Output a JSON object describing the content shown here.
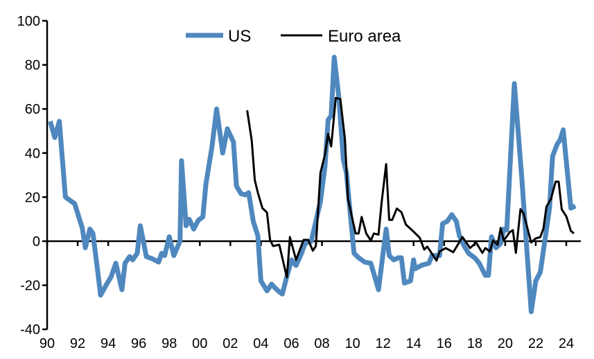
{
  "chart_data": {
    "type": "line",
    "title": "",
    "xlabel": "",
    "ylabel": "",
    "xlim": [
      1990,
      2024.7
    ],
    "ylim": [
      -40,
      100
    ],
    "y_ticks": [
      -40,
      -20,
      0,
      20,
      40,
      60,
      80,
      100
    ],
    "x_ticks": [
      1990,
      1992,
      1994,
      1996,
      1998,
      2000,
      2002,
      2004,
      2006,
      2008,
      2010,
      2012,
      2014,
      2016,
      2018,
      2020,
      2022,
      2024
    ],
    "x_tick_labels": [
      "90",
      "92",
      "94",
      "96",
      "98",
      "00",
      "02",
      "04",
      "06",
      "08",
      "10",
      "12",
      "14",
      "16",
      "18",
      "20",
      "22",
      "24"
    ],
    "y_tick_labels": [
      "-40",
      "-20",
      "0",
      "20",
      "40",
      "60",
      "80",
      "100"
    ],
    "grid": false,
    "legend_position": "top",
    "series": [
      {
        "name": "US",
        "color": "#4F88BE",
        "points": [
          [
            1990.2,
            54.4
          ],
          [
            1990.5,
            47
          ],
          [
            1990.8,
            54.4
          ],
          [
            1991.2,
            20
          ],
          [
            1991.8,
            17
          ],
          [
            1992.3,
            6
          ],
          [
            1992.5,
            -3
          ],
          [
            1992.8,
            5.5
          ],
          [
            1993.0,
            3.5
          ],
          [
            1993.3,
            -13
          ],
          [
            1993.5,
            -24.5
          ],
          [
            1993.9,
            -19.5
          ],
          [
            1994.2,
            -16
          ],
          [
            1994.5,
            -10
          ],
          [
            1994.9,
            -22
          ],
          [
            1995.1,
            -10
          ],
          [
            1995.4,
            -7
          ],
          [
            1995.6,
            -8.5
          ],
          [
            1995.9,
            -5.5
          ],
          [
            1996.1,
            7
          ],
          [
            1996.5,
            -7
          ],
          [
            1996.9,
            -8
          ],
          [
            1997.3,
            -9.5
          ],
          [
            1997.5,
            -5.5
          ],
          [
            1997.7,
            -6.5
          ],
          [
            1998.0,
            2
          ],
          [
            1998.3,
            -6.5
          ],
          [
            1998.7,
            0
          ],
          [
            1998.8,
            36.5
          ],
          [
            1999.1,
            7
          ],
          [
            1999.3,
            10
          ],
          [
            1999.6,
            5.5
          ],
          [
            1999.9,
            9.5
          ],
          [
            2000.2,
            11
          ],
          [
            2000.4,
            26
          ],
          [
            2000.8,
            43
          ],
          [
            2001.1,
            60
          ],
          [
            2001.5,
            40
          ],
          [
            2001.8,
            51
          ],
          [
            2002.2,
            45
          ],
          [
            2002.4,
            25
          ],
          [
            2002.7,
            21.5
          ],
          [
            2003.0,
            21
          ],
          [
            2003.2,
            22
          ],
          [
            2003.5,
            9
          ],
          [
            2003.8,
            2.5
          ],
          [
            2004.0,
            -18
          ],
          [
            2004.4,
            -22.5
          ],
          [
            2004.7,
            -19.5
          ],
          [
            2004.9,
            -21
          ],
          [
            2005.2,
            -23
          ],
          [
            2005.4,
            -24
          ],
          [
            2005.7,
            -16
          ],
          [
            2006.0,
            -8.5
          ],
          [
            2006.3,
            -11
          ],
          [
            2006.6,
            -6.5
          ],
          [
            2006.9,
            -1
          ],
          [
            2007.3,
            0
          ],
          [
            2007.9,
            18
          ],
          [
            2008.2,
            34
          ],
          [
            2008.4,
            55
          ],
          [
            2008.6,
            57
          ],
          [
            2008.8,
            83.5
          ],
          [
            2009.1,
            65.5
          ],
          [
            2009.4,
            37
          ],
          [
            2009.6,
            31
          ],
          [
            2010.1,
            -5.5
          ],
          [
            2010.4,
            -7.5
          ],
          [
            2010.8,
            -9.5
          ],
          [
            2011.2,
            -10
          ],
          [
            2011.7,
            -22
          ],
          [
            2012.2,
            5.5
          ],
          [
            2012.4,
            -6.5
          ],
          [
            2012.7,
            -8.5
          ],
          [
            2013.0,
            -7.5
          ],
          [
            2013.2,
            -7.5
          ],
          [
            2013.4,
            -19
          ],
          [
            2013.8,
            -18
          ],
          [
            2014.0,
            -8.5
          ],
          [
            2014.1,
            -12.5
          ],
          [
            2014.5,
            -11
          ],
          [
            2015.0,
            -10
          ],
          [
            2015.2,
            -6.5
          ],
          [
            2015.7,
            -6.5
          ],
          [
            2015.9,
            8
          ],
          [
            2016.2,
            9
          ],
          [
            2016.5,
            12
          ],
          [
            2016.8,
            9
          ],
          [
            2017.0,
            2.5
          ],
          [
            2017.3,
            -2
          ],
          [
            2017.6,
            -5.5
          ],
          [
            2018.0,
            -7.5
          ],
          [
            2018.3,
            -10
          ],
          [
            2018.7,
            -15.5
          ],
          [
            2018.9,
            -15.5
          ],
          [
            2019.1,
            2
          ],
          [
            2019.4,
            -3
          ],
          [
            2019.7,
            -1
          ],
          [
            2019.9,
            5.5
          ],
          [
            2020.1,
            5
          ],
          [
            2020.6,
            71.5
          ],
          [
            2021.1,
            27.5
          ],
          [
            2021.7,
            -32
          ],
          [
            2022.0,
            -18
          ],
          [
            2022.3,
            -14
          ],
          [
            2022.9,
            15
          ],
          [
            2023.1,
            38.5
          ],
          [
            2023.4,
            44
          ],
          [
            2023.6,
            46
          ],
          [
            2023.8,
            50.5
          ],
          [
            2024.3,
            15
          ],
          [
            2024.6,
            16
          ]
        ]
      },
      {
        "name": "Euro area",
        "color": "#000000",
        "points": [
          [
            2003.1,
            59.4
          ],
          [
            2003.4,
            45.6
          ],
          [
            2003.6,
            27.7
          ],
          [
            2003.8,
            22
          ],
          [
            2004.1,
            15
          ],
          [
            2004.4,
            13
          ],
          [
            2004.6,
            0.6
          ],
          [
            2004.8,
            -2.2
          ],
          [
            2005.2,
            -1.6
          ],
          [
            2005.7,
            -16.4
          ],
          [
            2005.9,
            1.9
          ],
          [
            2006.3,
            -8.5
          ],
          [
            2006.8,
            0.6
          ],
          [
            2007.1,
            0.6
          ],
          [
            2007.4,
            -4.3
          ],
          [
            2007.6,
            -2.2
          ],
          [
            2007.9,
            31
          ],
          [
            2008.2,
            39.3
          ],
          [
            2008.4,
            48.7
          ],
          [
            2008.6,
            43
          ],
          [
            2008.9,
            65
          ],
          [
            2009.2,
            64.5
          ],
          [
            2009.5,
            46.5
          ],
          [
            2009.7,
            19.3
          ],
          [
            2010.2,
            3.5
          ],
          [
            2010.4,
            3.5
          ],
          [
            2010.6,
            11
          ],
          [
            2010.9,
            3.5
          ],
          [
            2011.2,
            0.3
          ],
          [
            2011.4,
            3.5
          ],
          [
            2011.7,
            3
          ],
          [
            2011.9,
            17.3
          ],
          [
            2012.2,
            35
          ],
          [
            2012.4,
            9.7
          ],
          [
            2012.6,
            9.7
          ],
          [
            2012.9,
            14.8
          ],
          [
            2013.2,
            13.2
          ],
          [
            2013.5,
            7.5
          ],
          [
            2013.9,
            5
          ],
          [
            2014.4,
            1.6
          ],
          [
            2014.7,
            -3.8
          ],
          [
            2014.9,
            -2.5
          ],
          [
            2015.5,
            -8.8
          ],
          [
            2015.7,
            -4.7
          ],
          [
            2016.1,
            -3.1
          ],
          [
            2016.6,
            -5
          ],
          [
            2017.2,
            1.9
          ],
          [
            2017.7,
            -3.1
          ],
          [
            2018.1,
            -0.6
          ],
          [
            2018.5,
            -5.3
          ],
          [
            2018.7,
            -3.1
          ],
          [
            2019.0,
            -4.7
          ],
          [
            2019.2,
            0.3
          ],
          [
            2019.5,
            -1.6
          ],
          [
            2019.7,
            6
          ],
          [
            2019.9,
            0.3
          ],
          [
            2020.3,
            4.1
          ],
          [
            2020.5,
            5
          ],
          [
            2020.7,
            -5.3
          ],
          [
            2021.0,
            14.5
          ],
          [
            2021.2,
            12.6
          ],
          [
            2021.7,
            -0.6
          ],
          [
            2022.0,
            1.3
          ],
          [
            2022.3,
            1.9
          ],
          [
            2022.5,
            5.7
          ],
          [
            2022.7,
            15.7
          ],
          [
            2023.0,
            19.2
          ],
          [
            2023.3,
            27
          ],
          [
            2023.5,
            27
          ],
          [
            2023.7,
            14.5
          ],
          [
            2024.0,
            11.3
          ],
          [
            2024.3,
            4.7
          ],
          [
            2024.5,
            3.5
          ]
        ]
      }
    ]
  }
}
